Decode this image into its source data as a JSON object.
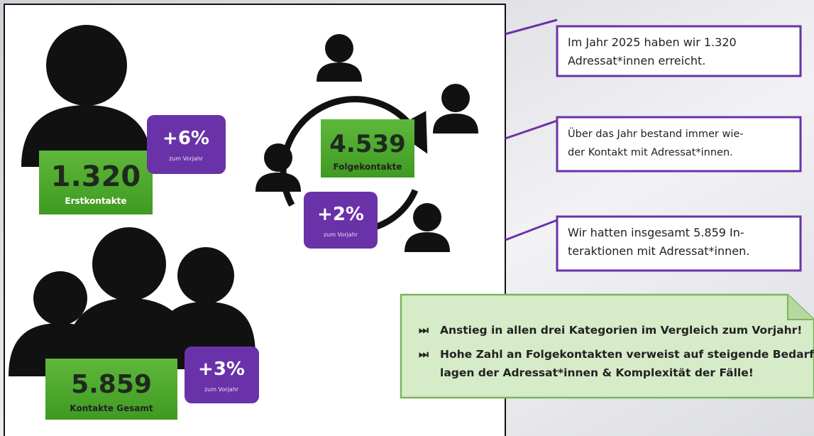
{
  "stats": [
    {
      "value": "1.320",
      "label": "Erstkontakte",
      "change": "+6%",
      "change_label": "zum Vorjahr"
    },
    {
      "value": "4.539",
      "label": "Folgekontakte",
      "change": "+2%",
      "change_label": "zum Vorjahr"
    },
    {
      "value": "5.859",
      "label": "Kontakte Gesamt",
      "change": "+3%",
      "change_label": "zum Vorjahr"
    }
  ],
  "callouts": [
    {
      "lines": [
        "Im Jahr 2025 haben wir 1.320",
        "Adressat*innen erreicht."
      ]
    },
    {
      "lines": [
        "Über das Jahr bestand immer wie-",
        "der Kontakt mit Adressat*innen."
      ]
    },
    {
      "lines": [
        "Wir hatten insgesamt 5.859 In-",
        "teraktionen mit Adressat*innen."
      ]
    }
  ],
  "summary": [
    {
      "lines": [
        "Anstieg in allen drei Kategorien im Vergleich zum Vorjahr!"
      ]
    },
    {
      "lines": [
        "Hohe Zahl an Folgekontakten verweist auf steigende Bedarfs-",
        "lagen der Adressat*innen  & Komplexität der Fälle!"
      ]
    }
  ]
}
